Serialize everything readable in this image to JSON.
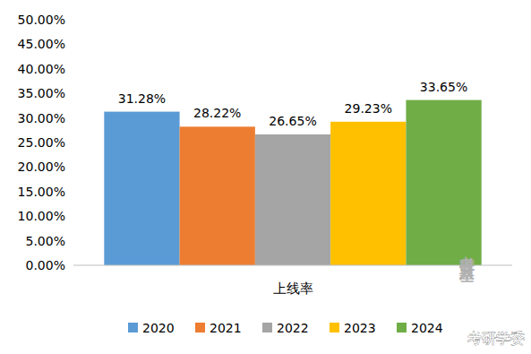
{
  "chart_data": {
    "type": "bar",
    "categories": [
      "上线率"
    ],
    "series": [
      {
        "name": "2020",
        "color": "#5b9bd5",
        "values": [
          31.28
        ],
        "value_labels": [
          "31.28%"
        ]
      },
      {
        "name": "2021",
        "color": "#ed7d31",
        "values": [
          28.22
        ],
        "value_labels": [
          "28.22%"
        ]
      },
      {
        "name": "2022",
        "color": "#a5a5a5",
        "values": [
          26.65
        ],
        "value_labels": [
          "26.65%"
        ]
      },
      {
        "name": "2023",
        "color": "#ffc000",
        "values": [
          29.23
        ],
        "value_labels": [
          "29.23%"
        ]
      },
      {
        "name": "2024",
        "color": "#70ad47",
        "values": [
          33.65
        ],
        "value_labels": [
          "33.65%"
        ]
      }
    ],
    "ylim": [
      0,
      50
    ],
    "yticks": [
      {
        "value": 0,
        "label": "0.00%"
      },
      {
        "value": 5,
        "label": "5.00%"
      },
      {
        "value": 10,
        "label": "10.00%"
      },
      {
        "value": 15,
        "label": "15.00%"
      },
      {
        "value": 20,
        "label": "20.00%"
      },
      {
        "value": 25,
        "label": "25.00%"
      },
      {
        "value": 30,
        "label": "30.00%"
      },
      {
        "value": 35,
        "label": "35.00%"
      },
      {
        "value": 40,
        "label": "40.00%"
      },
      {
        "value": 45,
        "label": "45.00%"
      },
      {
        "value": 50,
        "label": "50.00%"
      }
    ],
    "grid": false,
    "data_labels": true,
    "legend": "bottom",
    "annotations": [
      "考研斯基",
      "考研学委"
    ]
  }
}
